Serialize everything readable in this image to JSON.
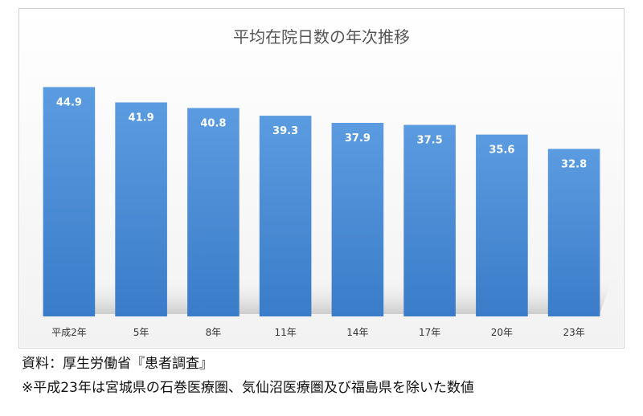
{
  "chart_data": {
    "type": "bar",
    "title": "平均在院日数の年次推移",
    "categories": [
      "平成2年",
      "5年",
      "8年",
      "11年",
      "14年",
      "17年",
      "20年",
      "23年"
    ],
    "values": [
      44.9,
      41.9,
      40.8,
      39.3,
      37.9,
      37.5,
      35.6,
      32.8
    ],
    "xlabel": "",
    "ylabel": "",
    "ylim": [
      0,
      50
    ],
    "grid": false,
    "legend": "none",
    "bar_color": "#4a8fd6"
  },
  "notes": {
    "source": "資料：厚生労働省『患者調査』",
    "footnote": "※平成23年は宮城県の石巻医療圏、気仙沼医療圏及び福島県を除いた数値"
  }
}
